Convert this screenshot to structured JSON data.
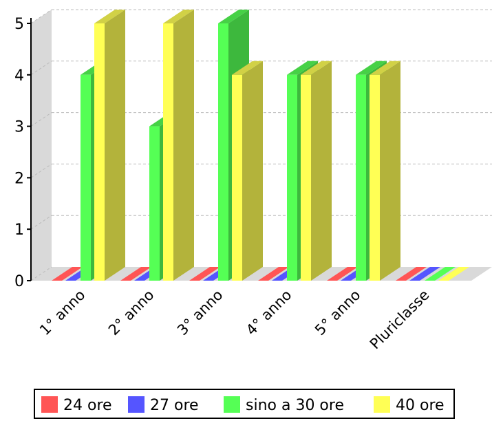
{
  "chart_data": {
    "type": "bar",
    "categories": [
      "1° anno",
      "2° anno",
      "3° anno",
      "4° anno",
      "5° anno",
      "Pluriclasse"
    ],
    "series": [
      {
        "name": "24 ore",
        "color": "#ff5555",
        "values": [
          0,
          0,
          0,
          0,
          0,
          0
        ]
      },
      {
        "name": "27 ore",
        "color": "#5555ff",
        "values": [
          0,
          0,
          0,
          0,
          0,
          0
        ]
      },
      {
        "name": "sino a 30 ore",
        "color": "#55ff55",
        "values": [
          4,
          3,
          5,
          4,
          4,
          0
        ]
      },
      {
        "name": "40 ore",
        "color": "#ffff55",
        "values": [
          5,
          5,
          4,
          4,
          4,
          0
        ]
      }
    ],
    "yticks": [
      "0",
      "1",
      "2",
      "3",
      "4",
      "5"
    ],
    "ylim": [
      0,
      5
    ],
    "grid": true,
    "legend_position": "bottom",
    "style": "3d"
  }
}
